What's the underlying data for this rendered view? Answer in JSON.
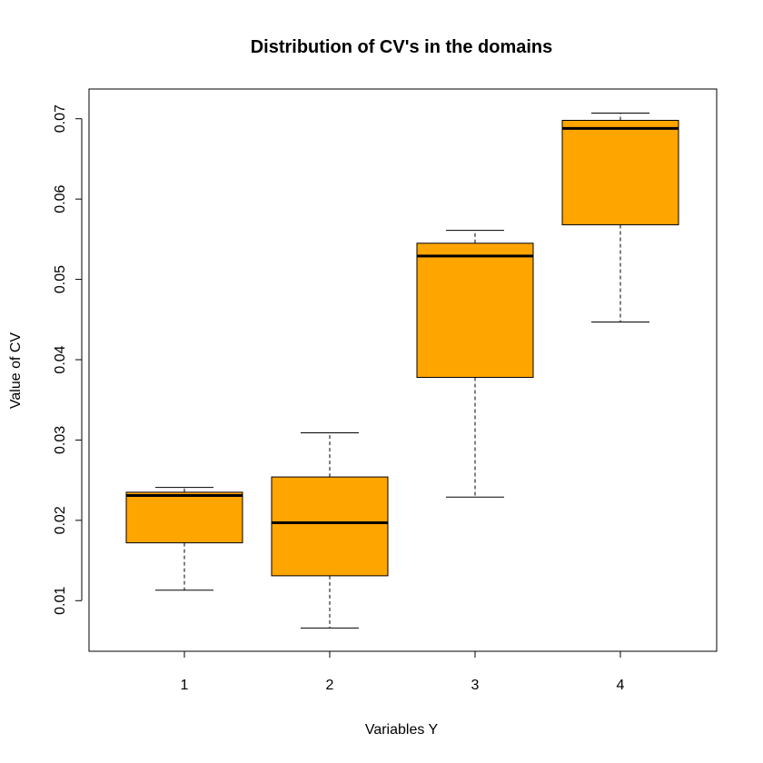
{
  "chart_data": {
    "type": "boxplot",
    "title": "Distribution of CV's in the domains",
    "xlabel": "Variables Y",
    "ylabel": "Value of CV",
    "categories": [
      "1",
      "2",
      "3",
      "4"
    ],
    "boxes": [
      {
        "category": "1",
        "whisker_low": 0.0113,
        "q1": 0.0172,
        "median": 0.0231,
        "q3": 0.0235,
        "whisker_high": 0.0241
      },
      {
        "category": "2",
        "whisker_low": 0.0066,
        "q1": 0.0131,
        "median": 0.0197,
        "q3": 0.0254,
        "whisker_high": 0.0309
      },
      {
        "category": "3",
        "whisker_low": 0.0229,
        "q1": 0.0378,
        "median": 0.0529,
        "q3": 0.0545,
        "whisker_high": 0.0561
      },
      {
        "category": "4",
        "whisker_low": 0.0447,
        "q1": 0.0568,
        "median": 0.0688,
        "q3": 0.0698,
        "whisker_high": 0.0707
      }
    ],
    "yticks": [
      "0.01",
      "0.02",
      "0.03",
      "0.04",
      "0.05",
      "0.06",
      "0.07"
    ],
    "ylim": [
      0.0037,
      0.0737
    ],
    "box_color": "#FFA500",
    "grid": false
  }
}
